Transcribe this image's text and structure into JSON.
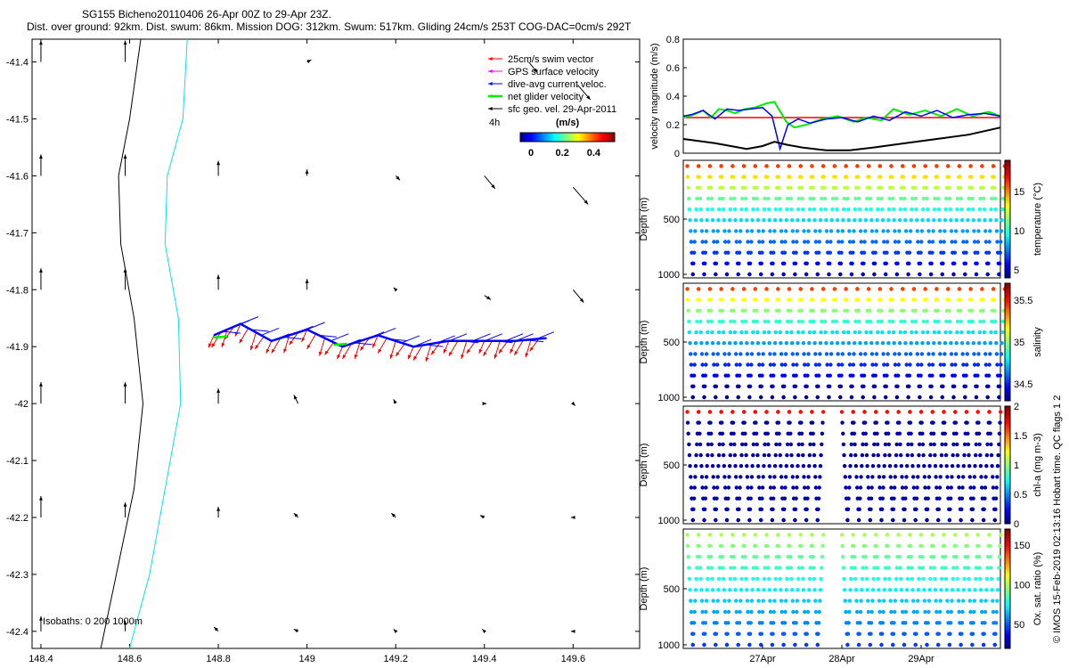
{
  "title": {
    "line1": "SG155 Bicheno20110406 26-Apr 00Z to 29-Apr 23Z.",
    "line2": "Dist. over ground: 92km. Dist. swum: 86km. Mission DOG: 312km. Swum: 517km. Gliding 24cm/s 253T COG-DAC=0cm/s 292T"
  },
  "footer_label": "© IMOS 15-Feb-2019 02:13:16 Hobart time. QC flags 1  2",
  "colors": {
    "swim": "#ff0000",
    "gps": "#ff00ff",
    "dac": "#0000ff",
    "net": "#00ee00",
    "sfc": "#000000",
    "isobath0": "#000000",
    "isobath200": "#00e5ee"
  },
  "chart_data": [
    {
      "type": "map",
      "x_ticks": [
        "148.4",
        "148.6",
        "148.8",
        "149",
        "149.2",
        "149.4",
        "149.6"
      ],
      "y_ticks": [
        "-41.4",
        "-41.5",
        "-41.6",
        "-41.7",
        "-41.8",
        "-41.9",
        "-42",
        "-42.1",
        "-42.2",
        "-42.3",
        "-42.4"
      ],
      "xlim": [
        148.38,
        149.75
      ],
      "ylim": [
        -42.43,
        -41.36
      ],
      "legend": {
        "placement": "top-right",
        "entries": [
          {
            "label": "25cm/s swim vector",
            "color": "#ff0000"
          },
          {
            "label": "GPS surface velocity",
            "color": "#ff00ff"
          },
          {
            "label": "dive-avg current veloc.",
            "color": "#0000ff"
          },
          {
            "label": "net glider velocity",
            "color": "#00ee00"
          },
          {
            "label": "sfc geo. vel. 29-Apr-2011",
            "color": "#000000"
          }
        ],
        "interval_label": "4h",
        "colorbar_label": "(m/s)",
        "colorbar_ticks": [
          "0",
          "0.2",
          "0.4"
        ]
      },
      "isobath_label": "Isobaths: 0   200  1000m",
      "isobath_0m": [
        [
          148.535,
          -42.43
        ],
        [
          148.57,
          -42.3
        ],
        [
          148.61,
          -42.15
        ],
        [
          148.63,
          -42.0
        ],
        [
          148.61,
          -41.85
        ],
        [
          148.58,
          -41.72
        ],
        [
          148.575,
          -41.6
        ],
        [
          148.6,
          -41.5
        ],
        [
          148.625,
          -41.36
        ]
      ],
      "isobath_200m": [
        [
          148.6,
          -42.43
        ],
        [
          148.645,
          -42.3
        ],
        [
          148.68,
          -42.15
        ],
        [
          148.715,
          -42.0
        ],
        [
          148.71,
          -41.85
        ],
        [
          148.68,
          -41.72
        ],
        [
          148.685,
          -41.6
        ],
        [
          148.72,
          -41.5
        ],
        [
          148.73,
          -41.36
        ]
      ],
      "glider_track": [
        [
          148.79,
          -41.88
        ],
        [
          148.85,
          -41.86
        ],
        [
          148.92,
          -41.89
        ],
        [
          149.0,
          -41.87
        ],
        [
          149.08,
          -41.9
        ],
        [
          149.16,
          -41.88
        ],
        [
          149.24,
          -41.9
        ],
        [
          149.32,
          -41.89
        ],
        [
          149.4,
          -41.89
        ],
        [
          149.47,
          -41.89
        ],
        [
          149.54,
          -41.885
        ]
      ],
      "sfc_vectors": [
        {
          "lon": 148.4,
          "lat": -41.4,
          "u": 0,
          "v": 0.1
        },
        {
          "lon": 148.59,
          "lat": -41.4,
          "u": 0,
          "v": 0.1
        },
        {
          "lon": 149.0,
          "lat": -41.4,
          "u": 0.02,
          "v": 0.01
        },
        {
          "lon": 149.5,
          "lat": -41.4,
          "u": 0.04,
          "v": -0.05
        },
        {
          "lon": 149.61,
          "lat": -41.44,
          "u": 0.06,
          "v": -0.07
        },
        {
          "lon": 148.4,
          "lat": -41.6,
          "u": 0,
          "v": 0.1
        },
        {
          "lon": 148.59,
          "lat": -41.6,
          "u": 0,
          "v": 0.1
        },
        {
          "lon": 148.8,
          "lat": -41.6,
          "u": 0,
          "v": 0.07
        },
        {
          "lon": 149.0,
          "lat": -41.6,
          "u": 0,
          "v": 0.03
        },
        {
          "lon": 149.2,
          "lat": -41.6,
          "u": 0.02,
          "v": -0.02
        },
        {
          "lon": 149.4,
          "lat": -41.6,
          "u": 0.05,
          "v": -0.06
        },
        {
          "lon": 149.6,
          "lat": -41.62,
          "u": 0.07,
          "v": -0.08
        },
        {
          "lon": 148.4,
          "lat": -41.8,
          "u": 0,
          "v": 0.1
        },
        {
          "lon": 148.59,
          "lat": -41.8,
          "u": 0,
          "v": 0.1
        },
        {
          "lon": 148.8,
          "lat": -41.8,
          "u": 0,
          "v": 0.07
        },
        {
          "lon": 149.0,
          "lat": -41.8,
          "u": 0,
          "v": 0.05
        },
        {
          "lon": 149.2,
          "lat": -41.8,
          "u": -0.01,
          "v": 0.01
        },
        {
          "lon": 149.4,
          "lat": -41.81,
          "u": 0.03,
          "v": -0.02
        },
        {
          "lon": 149.6,
          "lat": -41.8,
          "u": 0.05,
          "v": -0.06
        },
        {
          "lon": 148.4,
          "lat": -42.0,
          "u": 0,
          "v": 0.1
        },
        {
          "lon": 148.59,
          "lat": -42.0,
          "u": 0,
          "v": 0.1
        },
        {
          "lon": 148.8,
          "lat": -42.0,
          "u": 0,
          "v": 0.07
        },
        {
          "lon": 148.98,
          "lat": -42.0,
          "u": -0.02,
          "v": 0.04
        },
        {
          "lon": 149.2,
          "lat": -42.0,
          "u": -0.01,
          "v": 0.02
        },
        {
          "lon": 149.4,
          "lat": -42.0,
          "u": 0.01,
          "v": 0
        },
        {
          "lon": 149.6,
          "lat": -42.0,
          "u": 0.01,
          "v": -0.01
        },
        {
          "lon": 148.4,
          "lat": -42.2,
          "u": 0,
          "v": 0.1
        },
        {
          "lon": 148.59,
          "lat": -42.2,
          "u": 0,
          "v": 0.07
        },
        {
          "lon": 148.8,
          "lat": -42.2,
          "u": 0,
          "v": 0.05
        },
        {
          "lon": 148.98,
          "lat": -42.2,
          "u": -0.02,
          "v": 0.02
        },
        {
          "lon": 149.2,
          "lat": -42.2,
          "u": -0.02,
          "v": 0.02
        },
        {
          "lon": 149.4,
          "lat": -42.2,
          "u": -0.02,
          "v": 0.01
        },
        {
          "lon": 149.6,
          "lat": -42.2,
          "u": -0.01,
          "v": 0
        },
        {
          "lon": 148.4,
          "lat": -42.4,
          "u": 0,
          "v": 0.07
        },
        {
          "lon": 148.59,
          "lat": -42.4,
          "u": 0,
          "v": 0.05
        },
        {
          "lon": 148.8,
          "lat": -42.4,
          "u": -0.02,
          "v": 0.02
        },
        {
          "lon": 148.98,
          "lat": -42.4,
          "u": -0.02,
          "v": 0.01
        },
        {
          "lon": 149.2,
          "lat": -42.4,
          "u": -0.01,
          "v": 0.01
        },
        {
          "lon": 149.4,
          "lat": -42.4,
          "u": -0.01,
          "v": 0.01
        },
        {
          "lon": 149.6,
          "lat": -42.4,
          "u": -0.01,
          "v": 0
        }
      ]
    },
    {
      "type": "line",
      "ylabel": "velocity magnitude (m/s)",
      "xlim": [
        0,
        4
      ],
      "ylim": [
        0,
        0.8
      ],
      "yticks": [
        "0",
        "0.2",
        "0.4",
        "0.6",
        "0.8"
      ],
      "series": [
        {
          "color": "#ff0000",
          "x": [
            0,
            4
          ],
          "y": [
            0.25,
            0.25
          ]
        },
        {
          "color": "#00ee00",
          "x": [
            0,
            0.13,
            0.25,
            0.35,
            0.45,
            0.55,
            0.65,
            0.78,
            0.9,
            1.05,
            1.15,
            1.3,
            1.4,
            1.55,
            1.75,
            1.95,
            2.15,
            2.3,
            2.5,
            2.65,
            2.85,
            3.05,
            3.25,
            3.45,
            3.65,
            3.85,
            4.0
          ],
          "y": [
            0.25,
            0.27,
            0.3,
            0.25,
            0.31,
            0.3,
            0.28,
            0.31,
            0.32,
            0.35,
            0.36,
            0.22,
            0.18,
            0.2,
            0.24,
            0.26,
            0.22,
            0.25,
            0.23,
            0.31,
            0.27,
            0.3,
            0.26,
            0.31,
            0.26,
            0.29,
            0.26
          ]
        },
        {
          "color": "#0000ff",
          "x": [
            0,
            0.1,
            0.25,
            0.4,
            0.55,
            0.7,
            0.85,
            1.0,
            1.12,
            1.22,
            1.32,
            1.45,
            1.6,
            1.8,
            2.0,
            2.2,
            2.4,
            2.6,
            2.8,
            3.0,
            3.2,
            3.4,
            3.6,
            3.8,
            4.0
          ],
          "y": [
            0.26,
            0.27,
            0.3,
            0.24,
            0.31,
            0.3,
            0.31,
            0.32,
            0.26,
            0.03,
            0.2,
            0.24,
            0.21,
            0.24,
            0.25,
            0.22,
            0.26,
            0.23,
            0.29,
            0.26,
            0.3,
            0.25,
            0.27,
            0.28,
            0.26
          ]
        },
        {
          "color": "#000000",
          "x": [
            0,
            0.4,
            0.8,
            1.0,
            1.15,
            1.3,
            1.5,
            1.8,
            2.1,
            2.4,
            2.8,
            3.2,
            3.6,
            4.0
          ],
          "y": [
            0.1,
            0.07,
            0.03,
            0.05,
            0.08,
            0.06,
            0.04,
            0.02,
            0.02,
            0.04,
            0.07,
            0.1,
            0.13,
            0.18
          ]
        }
      ]
    },
    {
      "type": "scatter",
      "ylabel": "Depth (m)",
      "yticks": [
        "500",
        "1000"
      ],
      "ylim": [
        1000,
        0
      ],
      "cbar_label": "temperature (°C)",
      "cbar_ticks": [
        "5",
        "10",
        "15"
      ],
      "cbar_range": [
        4,
        19
      ],
      "profiles": [
        {
          "start_day": 0.05,
          "step_day": 0.143,
          "count": 28
        }
      ]
    },
    {
      "type": "scatter",
      "ylabel": "Depth (m)",
      "yticks": [
        "500",
        "1000"
      ],
      "ylim": [
        1000,
        0
      ],
      "cbar_label": "salinity",
      "cbar_ticks": [
        "34.5",
        "35",
        "35.5"
      ],
      "cbar_range": [
        34.3,
        35.7
      ],
      "profiles": [
        {
          "start_day": 0.05,
          "step_day": 0.143,
          "count": 28
        }
      ]
    },
    {
      "type": "scatter",
      "ylabel": "Depth (m)",
      "yticks": [
        "500",
        "1000"
      ],
      "ylim": [
        1000,
        0
      ],
      "cbar_label": "chl-a (mg m-3)",
      "cbar_ticks": [
        "0",
        "0.5",
        "1",
        "1.5",
        "2"
      ],
      "cbar_range": [
        0,
        2
      ],
      "profiles": [
        {
          "start_day": 0.05,
          "step_day": 0.143,
          "count": 12
        },
        {
          "start_day": 2.0,
          "step_day": 0.143,
          "count": 14
        }
      ]
    },
    {
      "type": "scatter",
      "ylabel": "Depth (m)",
      "yticks": [
        "500",
        "1000"
      ],
      "ylim": [
        1000,
        0
      ],
      "cbar_label": "Ox. sat. ratio (%)",
      "cbar_ticks": [
        "50",
        "100",
        "150"
      ],
      "cbar_range": [
        20,
        170
      ],
      "profiles": [
        {
          "start_day": 0.05,
          "step_day": 0.143,
          "count": 12
        },
        {
          "start_day": 2.0,
          "step_day": 0.143,
          "count": 14
        }
      ]
    }
  ],
  "time_axis": {
    "ticks": [
      "27Apr",
      "28Apr",
      "29Apr"
    ],
    "tick_days": [
      1,
      2,
      3
    ]
  }
}
